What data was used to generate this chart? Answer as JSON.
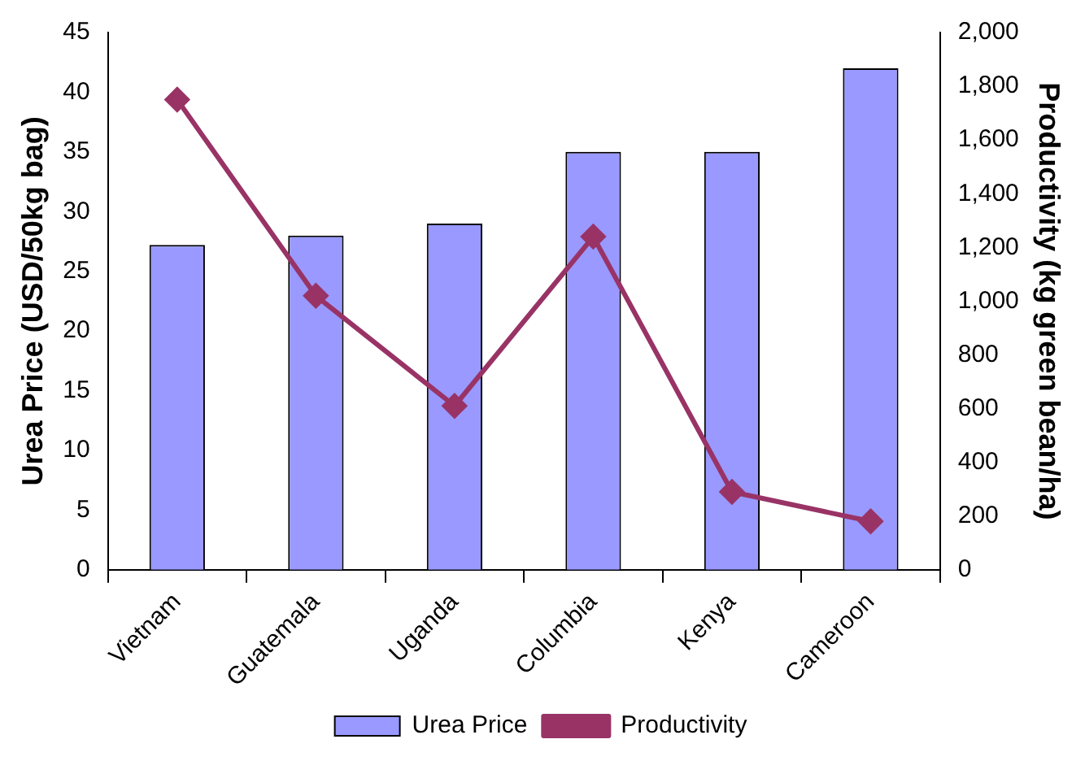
{
  "chart_data": {
    "type": "bar",
    "categories": [
      "Vietnam",
      "Guatemala",
      "Uganda",
      "Columbia",
      "Kenya",
      "Cameroon"
    ],
    "ylabel": "Urea Price (USD/50kg bag)",
    "y2label": "Productivity (kg green bean/ha)",
    "series": [
      {
        "name": "Urea Price",
        "color": "#9999ff",
        "values": [
          27.2,
          28,
          29,
          35,
          35,
          42
        ]
      },
      {
        "name": "Productivity",
        "type": "line",
        "axis": "y2",
        "color": "#993366",
        "values": [
          1750,
          1020,
          610,
          1240,
          290,
          180
        ]
      }
    ],
    "ylim": [
      0,
      45
    ],
    "yticks": [
      0,
      5,
      10,
      15,
      20,
      25,
      30,
      35,
      40,
      45
    ],
    "y2lim": [
      0,
      2000
    ],
    "y2ticks": [
      0,
      200,
      400,
      600,
      800,
      {
        "value": 1000,
        "label": "1,000"
      },
      {
        "value": 1200,
        "label": "1,200"
      },
      {
        "value": 1400,
        "label": "1,400"
      },
      {
        "value": 1600,
        "label": "1,600"
      },
      {
        "value": 1800,
        "label": "1,800"
      },
      {
        "value": 2000,
        "label": "2,000"
      }
    ],
    "grid": false,
    "legend": "bottom",
    "marker": "diamond",
    "line_style": "solid"
  }
}
